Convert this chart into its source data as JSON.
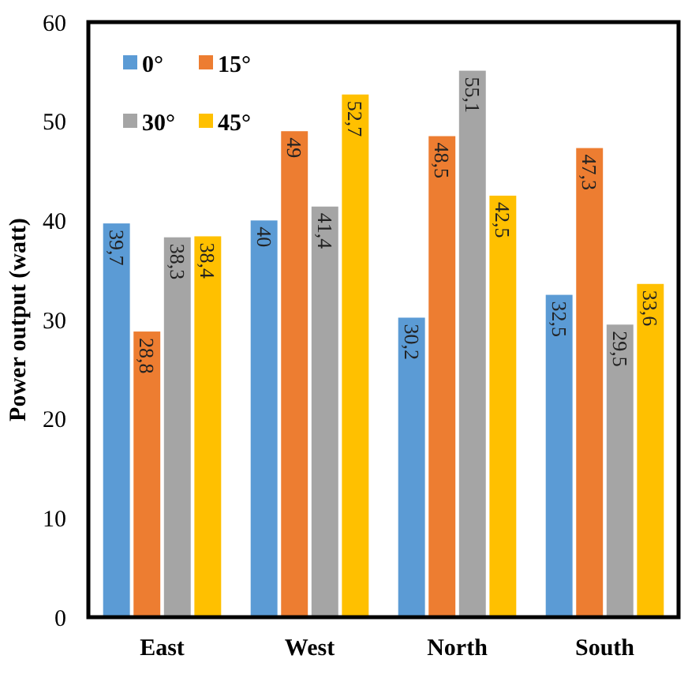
{
  "chart_data": {
    "type": "bar",
    "ylabel": "Power output (watt)",
    "categories": [
      "East",
      "West",
      "North",
      "South"
    ],
    "series": [
      {
        "name": "0°",
        "color": "#5b9bd5",
        "values": [
          39.7,
          40,
          30.2,
          32.5
        ],
        "value_labels": [
          "39,7",
          "40",
          "30,2",
          "32,5"
        ]
      },
      {
        "name": "15°",
        "color": "#ed7d31",
        "values": [
          28.8,
          49,
          48.5,
          47.3
        ],
        "value_labels": [
          "28,8",
          "49",
          "48,5",
          "47,3"
        ]
      },
      {
        "name": "30°",
        "color": "#a5a5a5",
        "values": [
          38.3,
          41.4,
          55.1,
          29.5
        ],
        "value_labels": [
          "38,3",
          "41,4",
          "55,1",
          "29,5"
        ]
      },
      {
        "name": "45°",
        "color": "#ffc000",
        "values": [
          38.4,
          52.7,
          42.5,
          33.6
        ],
        "value_labels": [
          "38,4",
          "52,7",
          "42,5",
          "33,6"
        ]
      }
    ],
    "ylim": [
      0,
      60
    ],
    "yticks": [
      0,
      10,
      20,
      30,
      40,
      50,
      60
    ],
    "grid": false,
    "legend": "top left"
  }
}
